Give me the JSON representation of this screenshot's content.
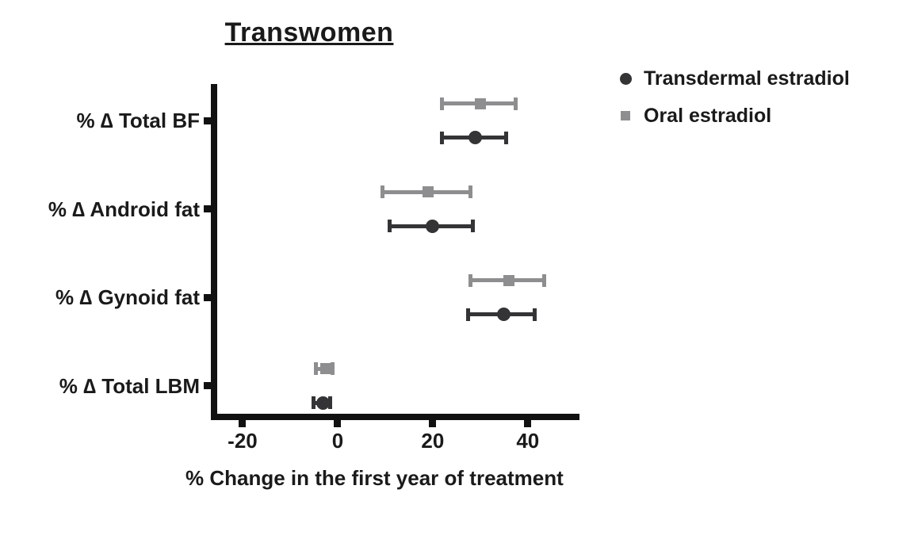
{
  "title": "Transwomen",
  "xlabel": "% Change in the first year of treatment",
  "colors": {
    "axis": "#111111",
    "text": "#1a1a1a",
    "transdermal": "#343436",
    "oral": "#8e8e90"
  },
  "chart_data": {
    "type": "scatter",
    "subtype": "horizontal-error-bar-forest-plot",
    "title": "Transwomen",
    "xlabel": "% Change in the first year of treatment",
    "xlim": [
      -26,
      50.7
    ],
    "xticks": [
      -20,
      0,
      20,
      40
    ],
    "grid": false,
    "legend_position": "top-right",
    "categories": [
      "% ∆ Total BF",
      "% ∆ Android fat",
      "% ∆ Gynoid fat",
      "% ∆ Total LBM"
    ],
    "series": [
      {
        "name": "Transdermal estradiol",
        "marker": "circle",
        "color": "#343436",
        "row_in_group": "lower",
        "values": [
          {
            "category": "% ∆ Total BF",
            "mean": 29,
            "lo": 22,
            "hi": 35.5
          },
          {
            "category": "% ∆ Android fat",
            "mean": 20,
            "lo": 11,
            "hi": 28.5
          },
          {
            "category": "% ∆ Gynoid fat",
            "mean": 35,
            "lo": 27.5,
            "hi": 41.5
          },
          {
            "category": "% ∆ Total LBM",
            "mean": -3,
            "lo": -5,
            "hi": -1.5
          }
        ]
      },
      {
        "name": "Oral estradiol",
        "marker": "square",
        "color": "#8e8e90",
        "row_in_group": "upper",
        "values": [
          {
            "category": "% ∆ Total BF",
            "mean": 30,
            "lo": 22,
            "hi": 37.5
          },
          {
            "category": "% ∆ Android fat",
            "mean": 19,
            "lo": 9.5,
            "hi": 28
          },
          {
            "category": "% ∆ Gynoid fat",
            "mean": 36,
            "lo": 28,
            "hi": 43.5
          },
          {
            "category": "% ∆ Total LBM",
            "mean": -2.5,
            "lo": -4.5,
            "hi": -1
          }
        ]
      }
    ]
  }
}
